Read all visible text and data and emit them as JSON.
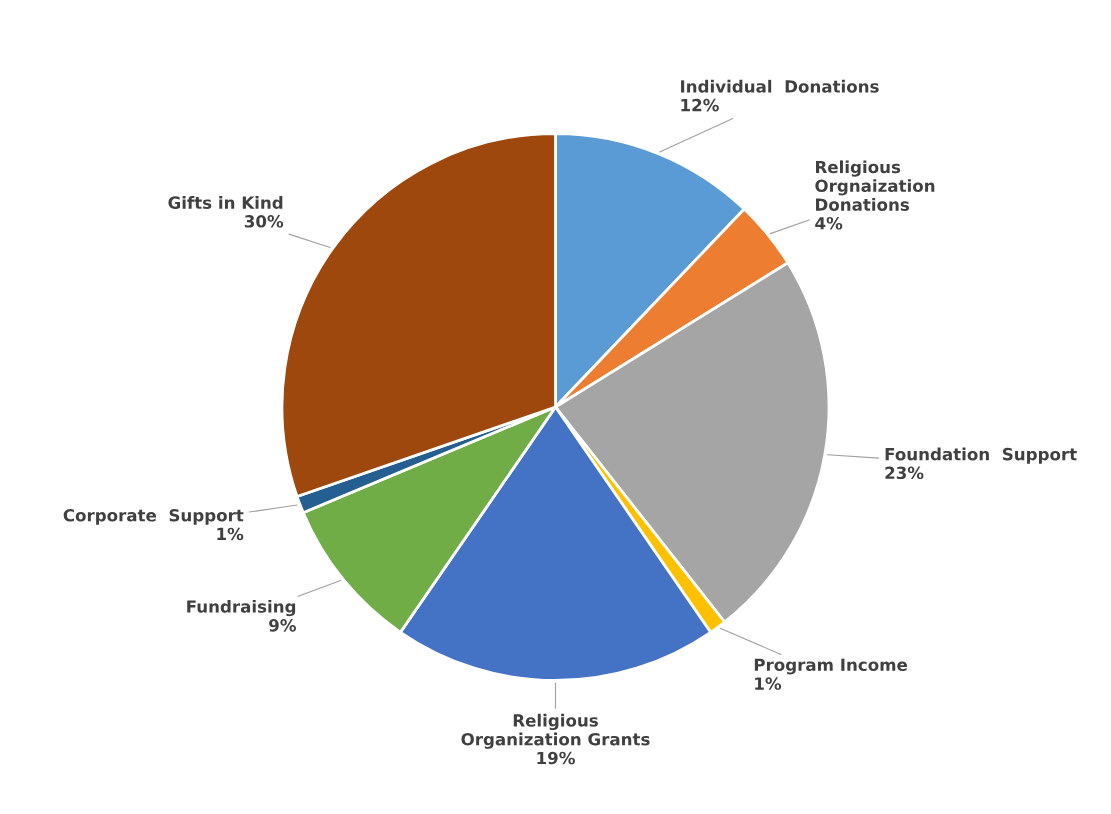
{
  "chart_data": {
    "type": "pie",
    "categories": [
      "Individual  Donations",
      "Religious\nOrgnaization\nDonations",
      "Foundation  Support",
      "Program Income",
      "Religious\nOrganization Grants",
      "Fundraising",
      "Corporate  Support",
      "Gifts in Kind"
    ],
    "values": [
      12,
      4,
      23,
      1,
      19,
      9,
      1,
      30
    ],
    "value_labels": [
      "12%",
      "4%",
      "23%",
      "1%",
      "19%",
      "9%",
      "1%",
      "30%"
    ],
    "colors": [
      "#5b9bd5",
      "#ed7d31",
      "#a5a5a5",
      "#ffc000",
      "#4472c4",
      "#70ad47",
      "#255e91",
      "#9e480e"
    ],
    "legend": false
  }
}
